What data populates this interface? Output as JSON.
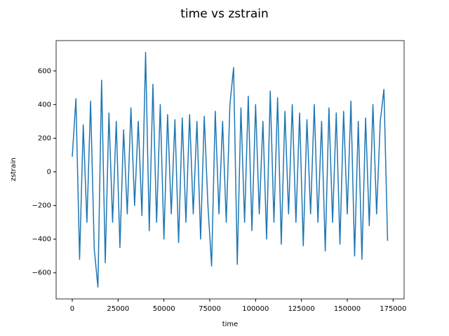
{
  "chart_data": {
    "type": "line",
    "title": "time vs zstrain",
    "x_label": "time",
    "y_label": "zstrain",
    "x": [
      0,
      2000,
      4000,
      6000,
      8000,
      10000,
      12000,
      14000,
      16000,
      18000,
      20000,
      22000,
      24000,
      26000,
      28000,
      30000,
      32000,
      34000,
      36000,
      38000,
      40000,
      42000,
      44000,
      46000,
      48000,
      50000,
      52000,
      54000,
      56000,
      58000,
      60000,
      62000,
      64000,
      66000,
      68000,
      70000,
      72000,
      74000,
      76000,
      78000,
      80000,
      82000,
      84000,
      86000,
      88000,
      90000,
      92000,
      94000,
      96000,
      98000,
      100000,
      102000,
      104000,
      106000,
      108000,
      110000,
      112000,
      114000,
      116000,
      118000,
      120000,
      122000,
      124000,
      126000,
      128000,
      130000,
      132000,
      134000,
      136000,
      138000,
      140000,
      142000,
      144000,
      146000,
      148000,
      150000,
      152000,
      154000,
      156000,
      158000,
      160000,
      162000,
      164000,
      166000,
      168000,
      170000,
      172000
    ],
    "series": [
      {
        "name": "zstrain",
        "color": "#1f77b4",
        "values": [
          90,
          435,
          -520,
          280,
          -300,
          420,
          -460,
          -685,
          545,
          -540,
          350,
          -300,
          300,
          -450,
          250,
          -250,
          380,
          -200,
          300,
          -260,
          710,
          -350,
          520,
          -300,
          400,
          -400,
          340,
          -250,
          310,
          -420,
          320,
          -300,
          340,
          -250,
          300,
          -400,
          330,
          -200,
          -560,
          360,
          -250,
          300,
          -300,
          400,
          620,
          -550,
          380,
          -300,
          450,
          -350,
          400,
          -250,
          300,
          -400,
          480,
          -300,
          440,
          -430,
          360,
          -250,
          400,
          -300,
          350,
          -440,
          310,
          -250,
          400,
          -300,
          300,
          -470,
          380,
          -300,
          350,
          -430,
          360,
          -250,
          420,
          -500,
          300,
          -520,
          320,
          -320,
          400,
          -250,
          300,
          490,
          -410
        ]
      }
    ],
    "xlim": [
      -8800,
      181000
    ],
    "ylim": [
      -755,
      780
    ],
    "xticks": [
      0,
      25000,
      50000,
      75000,
      100000,
      125000,
      150000,
      175000
    ],
    "yticks": [
      {
        "value": -600,
        "label": "−600"
      },
      {
        "value": -400,
        "label": "−400"
      },
      {
        "value": -200,
        "label": "−200"
      },
      0,
      200,
      400,
      600
    ]
  }
}
